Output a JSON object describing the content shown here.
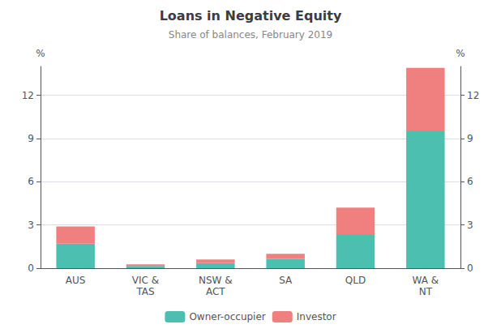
{
  "chart_data": {
    "type": "bar",
    "title": "Loans in Negative Equity",
    "subtitle": "Share of balances, February 2019",
    "categories": [
      "AUS",
      "VIC &\nTAS",
      "NSW &\nACT",
      "SA",
      "QLD",
      "WA &\nNT"
    ],
    "series": [
      {
        "name": "Owner-occupier",
        "color": "#4DBFB0",
        "values": [
          1.7,
          0.15,
          0.35,
          0.65,
          2.3,
          9.5
        ]
      },
      {
        "name": "Investor",
        "color": "#F08080",
        "values": [
          1.2,
          0.12,
          0.25,
          0.35,
          1.9,
          4.4
        ]
      }
    ],
    "stacked": true,
    "ylabel": "%",
    "y2label": "%",
    "ylim": [
      0,
      14
    ],
    "yticks": [
      0,
      3,
      6,
      9,
      12
    ],
    "y2lim": [
      0,
      14
    ],
    "y2ticks": [
      0,
      3,
      6,
      9,
      12
    ],
    "grid": true,
    "legend": "bottom"
  }
}
